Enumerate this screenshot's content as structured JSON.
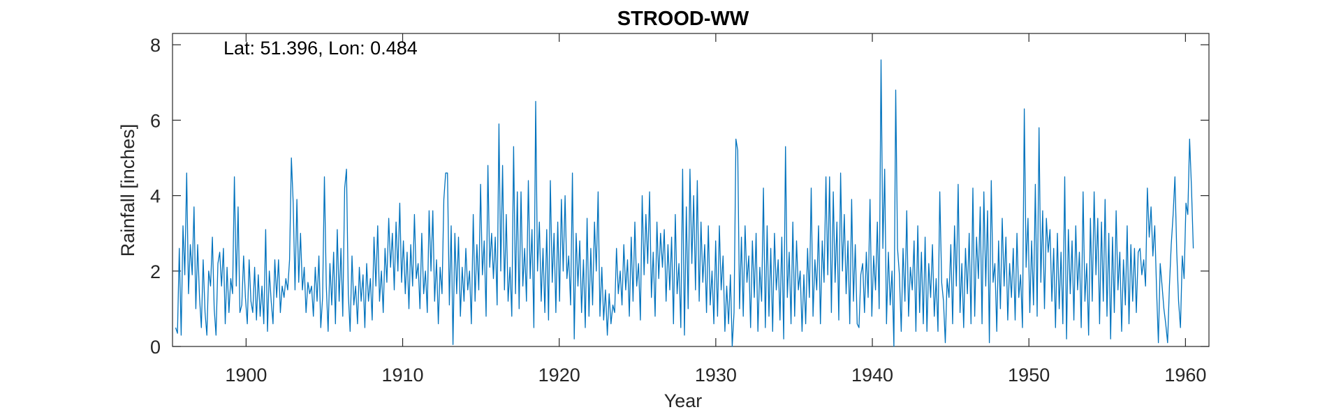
{
  "chart_data": {
    "type": "line",
    "title": "STROOD-WW",
    "xlabel": "Year",
    "ylabel": "Rainfall [inches]",
    "annotation": "Lat: 51.396, Lon: 0.484",
    "xlim": [
      1895.3,
      1961.5
    ],
    "ylim": [
      0,
      8.3
    ],
    "xticks": [
      1900,
      1910,
      1920,
      1930,
      1940,
      1950,
      1960
    ],
    "yticks": [
      0,
      2,
      4,
      6,
      8
    ],
    "grid": false,
    "box": true,
    "series_color": "#0072BD",
    "series": [
      {
        "resolution": "monthly",
        "x_start": 1895.5,
        "x_end": 1960.5,
        "values": [
          0.5,
          0.35,
          2.6,
          0.3,
          3.2,
          1.9,
          4.6,
          1.4,
          2.7,
          1.9,
          3.7,
          1.0,
          2.7,
          1.3,
          0.5,
          2.3,
          0.9,
          0.3,
          2.0,
          1.6,
          2.9,
          1.0,
          0.3,
          2.2,
          2.5,
          1.6,
          2.6,
          0.6,
          2.1,
          0.9,
          1.8,
          1.4,
          4.5,
          1.6,
          3.7,
          0.9,
          1.1,
          2.4,
          1.3,
          0.6,
          2.3,
          1.2,
          0.9,
          2.1,
          0.7,
          1.9,
          0.8,
          1.6,
          0.6,
          3.1,
          0.4,
          2.0,
          1.2,
          0.6,
          2.3,
          1.3,
          2.3,
          0.9,
          1.6,
          1.3,
          1.8,
          1.5,
          2.3,
          5.0,
          3.8,
          1.5,
          3.9,
          1.7,
          3.0,
          1.5,
          2.1,
          0.9,
          1.7,
          1.4,
          1.6,
          0.8,
          2.1,
          1.2,
          2.4,
          0.5,
          1.3,
          4.5,
          1.6,
          0.4,
          2.2,
          1.1,
          2.5,
          0.6,
          3.1,
          1.2,
          2.6,
          0.8,
          4.2,
          4.7,
          1.4,
          0.4,
          2.4,
          1.1,
          1.6,
          0.6,
          2.1,
          1.2,
          1.9,
          0.5,
          2.2,
          1.2,
          1.8,
          0.7,
          2.9,
          1.6,
          3.2,
          1.2,
          2.0,
          0.9,
          2.6,
          1.7,
          3.4,
          2.1,
          3.0,
          1.5,
          3.3,
          2.0,
          3.8,
          1.7,
          2.8,
          1.4,
          2.5,
          1.0,
          2.7,
          1.6,
          3.5,
          1.8,
          2.2,
          1.0,
          3.0,
          1.4,
          2.0,
          0.9,
          3.6,
          2.0,
          3.6,
          1.2,
          2.3,
          0.6,
          2.1,
          1.4,
          3.9,
          4.6,
          4.6,
          1.1,
          3.2,
          0.05,
          3.0,
          1.4,
          2.9,
          0.8,
          2.1,
          1.2,
          2.6,
          1.5,
          2.0,
          0.6,
          3.5,
          1.2,
          2.7,
          1.5,
          4.3,
          1.9,
          2.8,
          0.8,
          4.8,
          2.1,
          3.0,
          1.8,
          2.9,
          1.1,
          5.9,
          2.0,
          4.8,
          1.5,
          3.5,
          1.2,
          2.1,
          0.8,
          5.3,
          1.4,
          4.1,
          1.0,
          4.1,
          1.6,
          2.6,
          1.2,
          4.4,
          1.8,
          3.1,
          0.5,
          6.5,
          2.0,
          3.3,
          1.2,
          2.6,
          0.9,
          3.1,
          0.7,
          4.4,
          1.7,
          3.0,
          0.9,
          3.3,
          1.2,
          3.9,
          2.0,
          4.0,
          1.8,
          2.4,
          1.1,
          4.6,
          0.2,
          3.0,
          1.6,
          2.8,
          0.9,
          2.3,
          0.5,
          3.4,
          0.8,
          2.6,
          1.1,
          3.3,
          2.0,
          4.1,
          0.8,
          2.1,
          0.7,
          1.5,
          0.3,
          1.4,
          0.6,
          1.1,
          0.9,
          2.6,
          1.4,
          2.0,
          1.1,
          2.7,
          1.5,
          2.3,
          0.8,
          2.9,
          1.2,
          3.3,
          1.6,
          2.2,
          0.7,
          4.0,
          1.9,
          3.5,
          2.2,
          4.1,
          1.3,
          2.5,
          0.8,
          3.3,
          1.8,
          3.0,
          2.1,
          3.1,
          1.2,
          2.7,
          1.5,
          2.9,
          0.6,
          3.5,
          1.4,
          2.2,
          0.5,
          4.7,
          0.3,
          3.7,
          1.0,
          4.7,
          2.2,
          4.0,
          1.5,
          4.4,
          1.2,
          3.3,
          1.7,
          2.7,
          0.9,
          3.2,
          1.1,
          2.0,
          0.6,
          2.8,
          0.8,
          3.2,
          1.5,
          2.4,
          0.4,
          1.6,
          0.6,
          1.9,
          0.0,
          0.9,
          5.5,
          5.2,
          1.0,
          2.9,
          0.8,
          3.2,
          1.7,
          2.4,
          0.5,
          2.8,
          1.3,
          3.0,
          0.4,
          2.1,
          1.2,
          4.2,
          0.5,
          3.2,
          0.8,
          2.6,
          0.4,
          3.0,
          1.5,
          2.3,
          0.7,
          2.9,
          0.2,
          5.3,
          1.3,
          2.5,
          0.6,
          3.3,
          0.8,
          2.8,
          1.5,
          2.0,
          0.4,
          1.9,
          0.6,
          2.6,
          1.3,
          4.2,
          0.8,
          2.3,
          1.5,
          3.2,
          0.6,
          2.8,
          1.7,
          4.5,
          1.9,
          4.5,
          0.9,
          4.1,
          1.7,
          3.3,
          0.7,
          4.6,
          2.0,
          3.5,
          1.4,
          2.8,
          0.6,
          3.9,
          1.2,
          2.7,
          0.6,
          0.5,
          1.9,
          2.2,
          0.9,
          2.5,
          1.3,
          3.9,
          0.8,
          2.4,
          1.5,
          3.3,
          1.0,
          7.6,
          2.6,
          4.7,
          0.6,
          2.5,
          1.1,
          2.0,
          0.0,
          6.8,
          2.6,
          1.9,
          0.4,
          2.6,
          1.2,
          3.6,
          0.8,
          2.1,
          1.5,
          2.8,
          0.4,
          3.2,
          0.9,
          2.5,
          0.6,
          2.9,
          0.4,
          2.2,
          1.3,
          2.7,
          0.8,
          1.8,
          0.4,
          4.1,
          1.7,
          1.2,
          0.1,
          1.8,
          1.3,
          2.7,
          0.6,
          3.2,
          1.6,
          4.3,
          0.9,
          2.2,
          0.5,
          2.6,
          1.4,
          3.0,
          0.6,
          4.2,
          0.8,
          2.9,
          1.8,
          3.7,
          0.6,
          4.1,
          1.6,
          3.6,
          0.1,
          4.4,
          1.7,
          2.2,
          0.4,
          2.8,
          1.0,
          3.4,
          1.6,
          2.9,
          0.7,
          2.2,
          1.3,
          2.6,
          0.7,
          3.0,
          1.3,
          1.9,
          0.5,
          6.3,
          2.1,
          3.4,
          0.9,
          2.8,
          1.1,
          4.3,
          0.8,
          5.8,
          1.7,
          3.6,
          1.0,
          3.4,
          2.5,
          3.1,
          1.2,
          2.6,
          0.5,
          3.0,
          1.0,
          2.5,
          0.6,
          4.5,
          0.2,
          3.1,
          1.4,
          2.8,
          0.7,
          3.2,
          1.5,
          2.5,
          0.5,
          4.1,
          1.2,
          2.2,
          0.3,
          3.4,
          1.2,
          4.1,
          1.9,
          3.4,
          0.6,
          3.3,
          1.2,
          3.9,
          0.8,
          3.0,
          0.2,
          2.9,
          0.9,
          3.6,
          1.5,
          2.5,
          0.4,
          2.3,
          1.1,
          3.2,
          0.6,
          2.7,
          1.2,
          2.6,
          0.9,
          2.5,
          2.6,
          1.9,
          2.3,
          1.6,
          4.2,
          2.9,
          3.7,
          2.4,
          3.2,
          1.5,
          0.1,
          2.2,
          1.6,
          1.0,
          0.6,
          0.1,
          1.6,
          2.7,
          3.5,
          4.5,
          2.5,
          1.2,
          0.5,
          2.4,
          1.8,
          3.8,
          3.5,
          5.5,
          4.2,
          2.6
        ]
      }
    ]
  }
}
